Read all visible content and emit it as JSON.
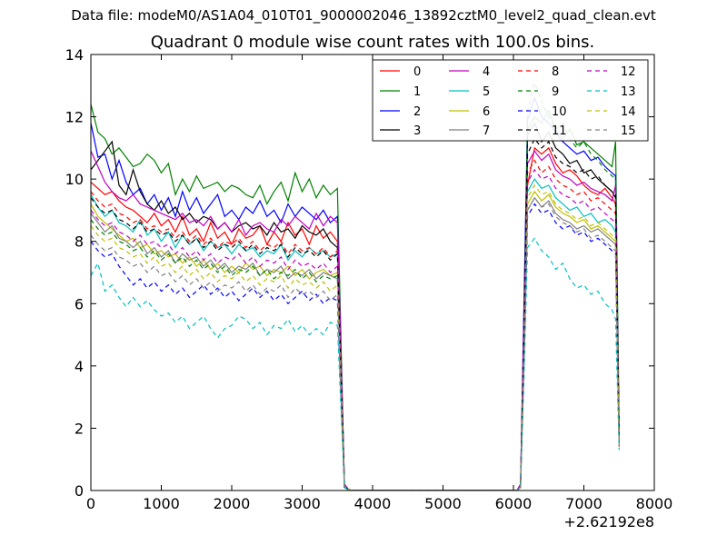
{
  "suptitle": "Data file: modeM0/AS1A04_010T01_9000002046_13892cztM0_level2_quad_clean.evt",
  "chart_data": {
    "type": "line",
    "title": "Quadrant 0 module wise count rates with 100.0s bins.",
    "xlabel": "",
    "ylabel": "",
    "x_offset_label": "+2.62192e8",
    "xlim": [
      0,
      8000
    ],
    "ylim": [
      0,
      14
    ],
    "xticks": [
      "0",
      "1000",
      "2000",
      "3000",
      "4000",
      "5000",
      "6000",
      "7000",
      "8000"
    ],
    "yticks": [
      "0",
      "2",
      "4",
      "6",
      "8",
      "10",
      "12",
      "14"
    ],
    "legend_position": "top-right",
    "x": [
      0,
      100,
      200,
      300,
      400,
      500,
      600,
      700,
      800,
      900,
      1000,
      1100,
      1200,
      1300,
      1400,
      1500,
      1600,
      1700,
      1800,
      1900,
      2000,
      2100,
      2200,
      2300,
      2400,
      2500,
      2600,
      2700,
      2800,
      2900,
      3000,
      3100,
      3200,
      3300,
      3400,
      3500,
      3600,
      3650,
      3700,
      4000,
      5000,
      6000,
      6050,
      6100,
      6150,
      6200,
      6300,
      6400,
      6500,
      6600,
      6700,
      6800,
      6900,
      7000,
      7100,
      7200,
      7300,
      7400,
      7450,
      7500
    ],
    "series": [
      {
        "name": "0",
        "color": "#ff0000",
        "dash": "solid",
        "values": [
          9.9,
          9.7,
          9.5,
          9.6,
          9.3,
          9.1,
          9.0,
          8.8,
          8.6,
          8.9,
          8.5,
          8.7,
          8.3,
          8.8,
          8.2,
          8.4,
          8.0,
          8.6,
          8.1,
          8.3,
          7.9,
          8.4,
          8.1,
          8.2,
          8.5,
          7.9,
          8.3,
          8.0,
          8.6,
          8.2,
          8.4,
          7.9,
          8.5,
          8.1,
          8.3,
          8.0,
          0.2,
          0.05,
          0.0,
          0.0,
          0.0,
          0.0,
          0.0,
          0.1,
          5.0,
          9.8,
          11.0,
          10.8,
          11.0,
          10.5,
          10.2,
          10.3,
          10.1,
          9.8,
          9.6,
          9.5,
          9.7,
          9.4,
          9.2,
          1.8
        ]
      },
      {
        "name": "1",
        "color": "#008000",
        "dash": "solid",
        "values": [
          12.4,
          11.5,
          11.3,
          10.8,
          11.0,
          10.7,
          10.4,
          10.5,
          10.8,
          10.6,
          10.2,
          10.5,
          9.5,
          10.0,
          9.6,
          10.1,
          9.7,
          9.8,
          9.9,
          9.6,
          9.8,
          9.7,
          9.5,
          9.4,
          9.8,
          9.2,
          9.6,
          9.9,
          9.3,
          10.2,
          9.6,
          10.0,
          9.4,
          9.8,
          9.5,
          9.7,
          0.1,
          0.02,
          0.0,
          0.0,
          0.0,
          0.0,
          0.0,
          0.1,
          5.6,
          11.6,
          12.0,
          11.8,
          12.2,
          11.6,
          11.3,
          11.6,
          11.1,
          11.2,
          11.0,
          10.8,
          10.6,
          10.4,
          11.2,
          2.0
        ]
      },
      {
        "name": "2",
        "color": "#0000ff",
        "dash": "solid",
        "values": [
          11.8,
          10.7,
          10.8,
          10.0,
          10.6,
          9.9,
          9.5,
          9.7,
          9.2,
          9.5,
          9.0,
          9.4,
          8.8,
          9.6,
          9.0,
          9.4,
          8.9,
          9.2,
          9.5,
          8.8,
          9.0,
          8.7,
          9.1,
          8.9,
          9.3,
          8.8,
          9.0,
          8.6,
          9.2,
          8.8,
          9.1,
          8.9,
          8.7,
          9.0,
          8.6,
          8.8,
          0.2,
          0.05,
          0.0,
          0.0,
          0.0,
          0.0,
          0.0,
          0.2,
          6.0,
          11.9,
          12.6,
          12.0,
          11.8,
          11.5,
          11.2,
          11.0,
          10.8,
          10.9,
          10.6,
          10.7,
          10.4,
          10.2,
          10.1,
          1.5
        ]
      },
      {
        "name": "3",
        "color": "#000000",
        "dash": "solid",
        "values": [
          10.3,
          10.6,
          10.9,
          11.2,
          9.8,
          9.5,
          10.3,
          9.6,
          9.2,
          9.0,
          9.3,
          8.9,
          9.1,
          8.7,
          8.9,
          8.6,
          8.8,
          8.7,
          8.4,
          8.6,
          8.3,
          8.5,
          8.6,
          8.4,
          8.5,
          8.2,
          8.6,
          8.3,
          8.4,
          8.1,
          8.5,
          8.3,
          8.2,
          8.4,
          8.0,
          7.8,
          0.2,
          0.05,
          0.0,
          0.0,
          0.0,
          0.0,
          0.0,
          0.1,
          5.2,
          11.4,
          11.8,
          11.2,
          11.5,
          11.0,
          10.8,
          10.5,
          10.6,
          10.2,
          10.3,
          10.0,
          9.8,
          9.6,
          9.4,
          1.8
        ]
      },
      {
        "name": "4",
        "color": "#bf00bf",
        "dash": "solid",
        "values": [
          10.9,
          10.4,
          9.9,
          9.6,
          9.4,
          9.3,
          9.5,
          9.2,
          9.1,
          9.0,
          8.9,
          8.8,
          8.7,
          8.9,
          8.6,
          8.7,
          8.5,
          8.8,
          8.4,
          8.6,
          8.3,
          8.7,
          8.2,
          8.5,
          8.6,
          8.4,
          8.3,
          8.7,
          8.5,
          8.8,
          8.6,
          8.4,
          8.9,
          8.5,
          8.8,
          8.6,
          0.2,
          0.05,
          0.0,
          0.0,
          0.0,
          0.0,
          0.0,
          0.2,
          5.5,
          10.5,
          10.9,
          10.6,
          10.8,
          10.3,
          10.1,
          10.0,
          9.8,
          9.9,
          9.7,
          9.6,
          9.5,
          9.3,
          9.8,
          1.7
        ]
      },
      {
        "name": "5",
        "color": "#00bfbf",
        "dash": "solid",
        "values": [
          9.5,
          9.1,
          8.8,
          9.0,
          8.6,
          8.5,
          8.3,
          8.7,
          8.2,
          8.4,
          8.0,
          8.3,
          7.8,
          8.2,
          7.9,
          8.1,
          7.7,
          8.0,
          7.8,
          7.9,
          7.6,
          7.9,
          7.7,
          7.8,
          7.5,
          7.7,
          7.6,
          7.9,
          7.4,
          7.7,
          7.5,
          7.8,
          7.6,
          7.7,
          7.5,
          7.6,
          0.15,
          0.04,
          0.0,
          0.0,
          0.0,
          0.0,
          0.0,
          0.1,
          4.8,
          9.6,
          10.0,
          9.7,
          9.8,
          9.4,
          9.2,
          9.0,
          9.1,
          8.8,
          8.9,
          8.6,
          8.7,
          8.5,
          8.3,
          1.6
        ]
      },
      {
        "name": "6",
        "color": "#bfbf00",
        "dash": "solid",
        "values": [
          9.2,
          8.8,
          8.6,
          8.4,
          8.2,
          8.0,
          8.1,
          7.8,
          7.9,
          7.6,
          7.7,
          7.5,
          7.6,
          7.3,
          7.5,
          7.2,
          7.4,
          7.1,
          7.3,
          7.0,
          7.2,
          7.0,
          7.3,
          7.1,
          7.2,
          6.9,
          7.1,
          7.0,
          7.2,
          6.9,
          7.1,
          6.8,
          7.0,
          7.1,
          6.9,
          7.0,
          0.15,
          0.04,
          0.0,
          0.0,
          0.0,
          0.0,
          0.0,
          0.1,
          4.6,
          9.2,
          9.6,
          9.3,
          9.5,
          9.1,
          8.9,
          8.8,
          8.6,
          8.7,
          8.4,
          8.5,
          8.3,
          8.1,
          8.0,
          1.5
        ]
      },
      {
        "name": "7",
        "color": "#808080",
        "dash": "solid",
        "values": [
          8.9,
          8.6,
          8.3,
          8.5,
          8.1,
          8.0,
          7.8,
          8.0,
          7.6,
          7.8,
          7.5,
          7.7,
          7.3,
          7.6,
          7.4,
          7.5,
          7.2,
          7.4,
          7.1,
          7.3,
          7.0,
          7.2,
          7.1,
          7.3,
          6.9,
          7.1,
          7.0,
          7.2,
          6.8,
          7.0,
          6.9,
          7.1,
          6.8,
          7.0,
          6.9,
          6.8,
          0.15,
          0.04,
          0.0,
          0.0,
          0.0,
          0.0,
          0.0,
          0.1,
          4.5,
          9.0,
          9.4,
          9.1,
          9.3,
          8.9,
          8.7,
          8.6,
          8.4,
          8.5,
          8.3,
          8.4,
          8.2,
          8.0,
          7.9,
          1.4
        ]
      },
      {
        "name": "8",
        "color": "#ff0000",
        "dash": "dashed",
        "values": [
          9.6,
          9.3,
          9.1,
          9.2,
          8.9,
          8.8,
          8.6,
          8.7,
          8.4,
          8.5,
          8.3,
          8.4,
          8.1,
          8.3,
          8.0,
          8.2,
          7.9,
          8.1,
          7.8,
          8.0,
          7.9,
          8.1,
          7.8,
          8.0,
          7.7,
          7.9,
          7.8,
          8.0,
          7.6,
          7.9,
          7.7,
          7.8,
          7.6,
          7.8,
          7.5,
          7.7,
          0.15,
          0.04,
          0.0,
          0.0,
          0.0,
          0.0,
          0.0,
          0.1,
          4.9,
          10.2,
          10.6,
          10.2,
          10.4,
          10.0,
          9.8,
          9.7,
          9.5,
          9.6,
          9.3,
          9.4,
          9.2,
          9.0,
          8.9,
          1.6
        ]
      },
      {
        "name": "9",
        "color": "#008000",
        "dash": "dashed",
        "values": [
          8.7,
          8.4,
          8.2,
          8.3,
          8.0,
          7.9,
          7.7,
          7.8,
          7.5,
          7.7,
          7.4,
          7.6,
          7.3,
          7.5,
          7.2,
          7.4,
          7.1,
          7.3,
          7.0,
          7.2,
          6.9,
          7.1,
          7.0,
          7.2,
          6.9,
          7.1,
          6.8,
          7.0,
          6.9,
          7.1,
          6.8,
          7.0,
          6.7,
          6.9,
          6.8,
          6.9,
          0.15,
          0.04,
          0.0,
          0.0,
          0.0,
          0.0,
          0.0,
          0.1,
          4.4,
          12.2,
          13.1,
          12.5,
          12.0,
          11.6,
          11.8,
          11.3,
          11.0,
          11.2,
          10.8,
          10.6,
          10.3,
          10.1,
          10.0,
          1.5
        ]
      },
      {
        "name": "10",
        "color": "#0000ff",
        "dash": "dashed",
        "values": [
          8.0,
          7.7,
          7.5,
          7.6,
          7.2,
          6.9,
          6.6,
          6.8,
          6.5,
          6.7,
          6.4,
          6.6,
          6.3,
          6.5,
          6.2,
          6.4,
          6.6,
          6.3,
          6.5,
          6.2,
          6.4,
          6.1,
          6.3,
          6.5,
          6.2,
          6.4,
          6.1,
          6.3,
          6.0,
          6.2,
          6.4,
          6.1,
          6.3,
          6.0,
          6.2,
          6.1,
          0.1,
          0.03,
          0.0,
          0.0,
          0.0,
          0.0,
          0.0,
          0.1,
          4.0,
          8.8,
          9.2,
          8.9,
          9.0,
          8.6,
          8.4,
          8.5,
          8.2,
          8.3,
          8.0,
          8.1,
          7.9,
          7.7,
          7.6,
          1.4
        ]
      },
      {
        "name": "11",
        "color": "#000000",
        "dash": "dashed",
        "values": [
          9.4,
          9.1,
          8.9,
          9.0,
          8.7,
          8.6,
          8.4,
          8.6,
          8.3,
          8.4,
          8.2,
          8.3,
          8.0,
          8.2,
          7.9,
          8.1,
          7.8,
          8.0,
          7.7,
          7.9,
          7.8,
          8.0,
          7.7,
          7.9,
          7.6,
          7.8,
          7.7,
          7.9,
          7.5,
          7.8,
          7.6,
          7.7,
          7.5,
          7.7,
          7.4,
          7.6,
          0.15,
          0.04,
          0.0,
          0.0,
          0.0,
          0.0,
          0.0,
          0.1,
          5.1,
          10.8,
          11.3,
          11.0,
          11.2,
          10.7,
          10.5,
          10.4,
          10.2,
          10.3,
          10.0,
          10.1,
          9.8,
          9.6,
          9.5,
          1.7
        ]
      },
      {
        "name": "12",
        "color": "#bf00bf",
        "dash": "dashed",
        "values": [
          9.0,
          8.7,
          8.5,
          8.6,
          8.3,
          8.2,
          8.0,
          8.2,
          7.9,
          8.0,
          7.8,
          7.9,
          7.6,
          7.8,
          7.5,
          7.7,
          7.4,
          7.6,
          7.3,
          7.5,
          7.4,
          7.6,
          7.3,
          7.5,
          7.2,
          7.4,
          7.3,
          7.5,
          7.1,
          7.4,
          7.2,
          7.3,
          7.1,
          7.3,
          7.0,
          7.2,
          0.15,
          0.04,
          0.0,
          0.0,
          0.0,
          0.0,
          0.0,
          0.1,
          4.7,
          9.9,
          10.3,
          10.0,
          10.1,
          9.7,
          9.5,
          9.4,
          9.2,
          9.3,
          9.0,
          9.1,
          8.9,
          8.7,
          8.6,
          1.5
        ]
      },
      {
        "name": "13",
        "color": "#00bfbf",
        "dash": "dashed",
        "values": [
          6.9,
          7.3,
          6.4,
          6.6,
          6.2,
          5.9,
          6.2,
          5.9,
          6.1,
          5.8,
          5.6,
          5.7,
          5.4,
          5.6,
          5.2,
          5.4,
          5.6,
          5.2,
          4.9,
          5.2,
          5.3,
          5.6,
          5.5,
          5.2,
          5.4,
          5.0,
          5.3,
          5.2,
          5.5,
          5.1,
          5.3,
          5.0,
          5.2,
          5.0,
          5.4,
          5.3,
          0.1,
          0.03,
          0.0,
          0.0,
          0.0,
          0.0,
          0.0,
          0.1,
          3.6,
          7.8,
          8.1,
          7.7,
          7.5,
          7.1,
          7.3,
          6.8,
          6.5,
          6.6,
          6.3,
          6.4,
          6.0,
          5.8,
          5.5,
          1.3
        ]
      },
      {
        "name": "14",
        "color": "#bfbf00",
        "dash": "dashed",
        "values": [
          8.5,
          8.2,
          8.0,
          8.1,
          7.8,
          7.7,
          7.5,
          7.6,
          7.3,
          7.5,
          7.2,
          7.3,
          7.0,
          7.2,
          6.9,
          7.1,
          6.8,
          7.0,
          6.7,
          6.9,
          6.8,
          7.0,
          6.7,
          6.9,
          6.6,
          6.8,
          6.7,
          6.9,
          6.5,
          6.8,
          6.6,
          6.7,
          6.5,
          6.7,
          6.4,
          6.6,
          0.15,
          0.04,
          0.0,
          0.0,
          0.0,
          0.0,
          0.0,
          0.1,
          4.3,
          9.4,
          9.8,
          9.5,
          9.6,
          9.2,
          9.0,
          8.9,
          8.7,
          8.8,
          8.5,
          8.6,
          8.4,
          8.2,
          8.1,
          1.4
        ]
      },
      {
        "name": "15",
        "color": "#808080",
        "dash": "dashed",
        "values": [
          8.2,
          7.9,
          7.7,
          7.8,
          7.5,
          7.4,
          7.2,
          7.3,
          7.0,
          7.2,
          6.9,
          7.0,
          6.7,
          6.9,
          6.6,
          6.8,
          6.5,
          6.7,
          6.4,
          6.6,
          6.5,
          6.7,
          6.4,
          6.6,
          6.3,
          6.5,
          6.4,
          6.6,
          6.2,
          6.5,
          6.3,
          6.4,
          6.2,
          6.4,
          6.1,
          6.3,
          0.15,
          0.04,
          0.0,
          0.0,
          0.0,
          0.0,
          0.0,
          0.1,
          4.2,
          9.0,
          9.4,
          9.1,
          9.2,
          8.8,
          8.6,
          8.5,
          8.3,
          8.4,
          8.1,
          8.2,
          8.0,
          7.8,
          7.7,
          1.4
        ]
      }
    ]
  }
}
